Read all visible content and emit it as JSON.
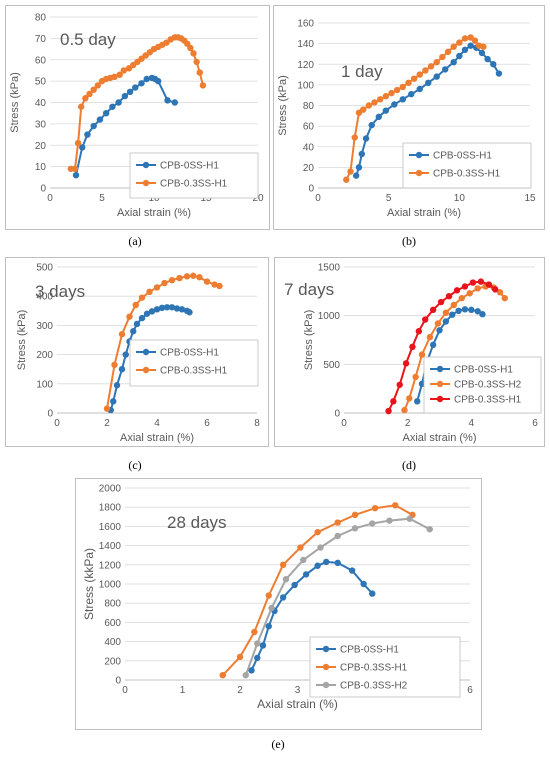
{
  "colors": {
    "blue": "#2E75B6",
    "orange": "#ED7D31",
    "gray": "#A5A5A5",
    "red": "#E8141B",
    "axis": "#595959",
    "grid": "#D9D9D9",
    "frame": "#BFBFBF"
  },
  "chart_data": [
    {
      "type": "line",
      "caption": "(a)",
      "title": "0.5 day",
      "xlabel": "Axial strain (%)",
      "ylabel": "Stress (kPa)",
      "xlim": [
        0,
        20
      ],
      "ylim": [
        0,
        80
      ],
      "xticks": [
        0,
        5,
        10,
        15,
        20
      ],
      "yticks": [
        0,
        10,
        20,
        30,
        40,
        50,
        60,
        70,
        80
      ],
      "legend": "bottom-right",
      "series": [
        {
          "name": "CPB-0SS-H1",
          "color": "#2E75B6",
          "x": [
            2.5,
            3.1,
            3.6,
            4.2,
            4.8,
            5.4,
            6.0,
            6.6,
            7.2,
            7.7,
            8.2,
            8.8,
            9.3,
            9.8,
            10.1,
            10.4,
            11.3,
            12.0
          ],
          "y": [
            6,
            19,
            25,
            29,
            32,
            35,
            38,
            40,
            43,
            45,
            47,
            49,
            51,
            51.5,
            51,
            50,
            41,
            40
          ]
        },
        {
          "name": "CPB-0.3SS-H1",
          "color": "#ED7D31",
          "x": [
            2.0,
            2.4,
            2.7,
            3.0,
            3.4,
            3.8,
            4.2,
            4.6,
            5.0,
            5.4,
            5.8,
            6.2,
            6.7,
            7.1,
            7.6,
            8.0,
            8.4,
            8.8,
            9.2,
            9.6,
            10.0,
            10.4,
            10.8,
            11.2,
            11.6,
            12.0,
            12.3,
            12.6,
            12.9,
            13.2,
            13.5,
            13.8,
            14.1,
            14.4,
            14.7
          ],
          "y": [
            9,
            9,
            21,
            38,
            42,
            44,
            46,
            48,
            50,
            51,
            51.5,
            52,
            53,
            55,
            56,
            57.5,
            59,
            60.5,
            62,
            63.5,
            65,
            66,
            67,
            68,
            69.5,
            70.5,
            70.5,
            70,
            69,
            67.5,
            65.5,
            63,
            59,
            54,
            48
          ]
        }
      ]
    },
    {
      "type": "line",
      "caption": "(b)",
      "title": "1 day",
      "xlabel": "Axial strain (%)",
      "ylabel": "Stress (kPa)",
      "xlim": [
        0,
        15
      ],
      "ylim": [
        0,
        160
      ],
      "xticks": [
        0,
        5,
        10,
        15
      ],
      "yticks": [
        0,
        20,
        40,
        60,
        80,
        100,
        120,
        140,
        160
      ],
      "legend": "bottom-right",
      "series": [
        {
          "name": "CPB-0SS-H1",
          "color": "#2E75B6",
          "x": [
            2.7,
            2.9,
            3.1,
            3.4,
            3.8,
            4.3,
            4.8,
            5.4,
            6.0,
            6.6,
            7.2,
            7.8,
            8.4,
            9.0,
            9.6,
            10.0,
            10.4,
            10.8,
            11.2,
            11.6,
            12.0,
            12.4,
            12.8
          ],
          "y": [
            12,
            20,
            33,
            48,
            61,
            69,
            75,
            81,
            86,
            91,
            96,
            102,
            108,
            115,
            122,
            128,
            134,
            138,
            136,
            131,
            125,
            120,
            111
          ]
        },
        {
          "name": "CPB-0.3SS-H1",
          "color": "#ED7D31",
          "x": [
            2.0,
            2.3,
            2.6,
            2.9,
            3.2,
            3.6,
            4.0,
            4.4,
            4.8,
            5.2,
            5.6,
            6.0,
            6.4,
            6.8,
            7.2,
            7.6,
            8.0,
            8.4,
            8.8,
            9.2,
            9.6,
            10.0,
            10.4,
            10.8,
            11.1,
            11.4,
            11.7
          ],
          "y": [
            8,
            16,
            49,
            73,
            76,
            80,
            83,
            86,
            89,
            92,
            95,
            98,
            102,
            106,
            110,
            114,
            118,
            122,
            127,
            132,
            137,
            141,
            145,
            146,
            143,
            138,
            137
          ]
        }
      ]
    },
    {
      "type": "line",
      "caption": "(c)",
      "title": "3 days",
      "xlabel": "Axial strain (%)",
      "ylabel": "Stress (kPa)",
      "xlim": [
        0,
        8
      ],
      "ylim": [
        0,
        500
      ],
      "xticks": [
        0,
        2,
        4,
        6,
        8
      ],
      "yticks": [
        0,
        100,
        200,
        300,
        400,
        500
      ],
      "legend": "bottom-right",
      "series": [
        {
          "name": "CPB-0SS-H1",
          "color": "#2E75B6",
          "x": [
            2.15,
            2.25,
            2.4,
            2.6,
            2.75,
            2.9,
            3.05,
            3.2,
            3.4,
            3.6,
            3.8,
            4.0,
            4.2,
            4.4,
            4.6,
            4.8,
            5.0,
            5.2,
            5.3
          ],
          "y": [
            10,
            40,
            95,
            150,
            200,
            245,
            280,
            305,
            325,
            340,
            348,
            355,
            360,
            362,
            362,
            358,
            355,
            350,
            345
          ]
        },
        {
          "name": "CPB-0.3SS-H1",
          "color": "#ED7D31",
          "x": [
            2.0,
            2.3,
            2.6,
            2.9,
            3.15,
            3.4,
            3.7,
            4.0,
            4.3,
            4.6,
            4.9,
            5.2,
            5.45,
            5.7,
            6.0,
            6.3,
            6.5
          ],
          "y": [
            15,
            165,
            270,
            330,
            370,
            395,
            415,
            430,
            445,
            455,
            462,
            468,
            470,
            465,
            450,
            440,
            435
          ]
        }
      ]
    },
    {
      "type": "line",
      "caption": "(d)",
      "title": "7 days",
      "xlabel": "Axial strain (%)",
      "ylabel": "Stress (kPa)",
      "xlim": [
        0,
        6
      ],
      "ylim": [
        0,
        1500
      ],
      "xticks": [
        0,
        2,
        4,
        6
      ],
      "yticks": [
        0,
        500,
        1000,
        1500
      ],
      "legend": "bottom-right",
      "series": [
        {
          "name": "CPB-0SS-H1",
          "color": "#2E75B6",
          "x": [
            2.3,
            2.45,
            2.6,
            2.8,
            3.0,
            3.2,
            3.4,
            3.6,
            3.8,
            4.0,
            4.2,
            4.35
          ],
          "y": [
            120,
            300,
            520,
            700,
            850,
            940,
            1010,
            1050,
            1065,
            1060,
            1045,
            1015
          ]
        },
        {
          "name": "CPB-0.3SS-H2",
          "color": "#ED7D31",
          "x": [
            1.9,
            2.05,
            2.25,
            2.45,
            2.7,
            2.95,
            3.2,
            3.45,
            3.7,
            3.95,
            4.2,
            4.45,
            4.7,
            4.9,
            5.05
          ],
          "y": [
            30,
            150,
            370,
            600,
            780,
            920,
            1030,
            1110,
            1180,
            1230,
            1280,
            1300,
            1290,
            1240,
            1180
          ]
        },
        {
          "name": "CPB-0.3SS-H1",
          "color": "#E8141B",
          "x": [
            1.4,
            1.55,
            1.75,
            1.95,
            2.15,
            2.35,
            2.55,
            2.8,
            3.05,
            3.3,
            3.55,
            3.8,
            4.05,
            4.3,
            4.55,
            4.75
          ],
          "y": [
            20,
            120,
            290,
            510,
            680,
            840,
            960,
            1060,
            1140,
            1200,
            1260,
            1300,
            1340,
            1350,
            1320,
            1270
          ]
        }
      ]
    },
    {
      "type": "line",
      "caption": "(e)",
      "title": "28 days",
      "xlabel": "Axial strain (%)",
      "ylabel": "Stress (kkPa)",
      "xlim": [
        0,
        6
      ],
      "ylim": [
        0,
        2000
      ],
      "xticks": [
        0,
        1,
        2,
        3,
        4,
        5,
        6
      ],
      "yticks": [
        0,
        200,
        400,
        600,
        800,
        1000,
        1200,
        1400,
        1600,
        1800,
        2000
      ],
      "legend": "bottom-right",
      "series": [
        {
          "name": "CPB-0SS-H1",
          "color": "#2E75B6",
          "x": [
            2.2,
            2.3,
            2.4,
            2.5,
            2.6,
            2.75,
            2.95,
            3.15,
            3.35,
            3.5,
            3.7,
            3.95,
            4.15,
            4.3
          ],
          "y": [
            100,
            230,
            360,
            560,
            720,
            860,
            990,
            1100,
            1190,
            1230,
            1220,
            1140,
            1000,
            900
          ]
        },
        {
          "name": "CPB-0.3SS-H1",
          "color": "#ED7D31",
          "x": [
            1.7,
            2.0,
            2.25,
            2.5,
            2.75,
            3.05,
            3.35,
            3.7,
            4.0,
            4.35,
            4.7,
            5.0
          ],
          "y": [
            50,
            240,
            500,
            880,
            1200,
            1380,
            1540,
            1640,
            1720,
            1790,
            1820,
            1720
          ]
        },
        {
          "name": "CPB-0.3SS-H2",
          "color": "#A5A5A5",
          "x": [
            2.1,
            2.3,
            2.55,
            2.8,
            3.1,
            3.4,
            3.7,
            4.0,
            4.3,
            4.6,
            4.95,
            5.3
          ],
          "y": [
            50,
            380,
            750,
            1050,
            1250,
            1380,
            1500,
            1580,
            1630,
            1660,
            1680,
            1570
          ]
        }
      ]
    }
  ]
}
